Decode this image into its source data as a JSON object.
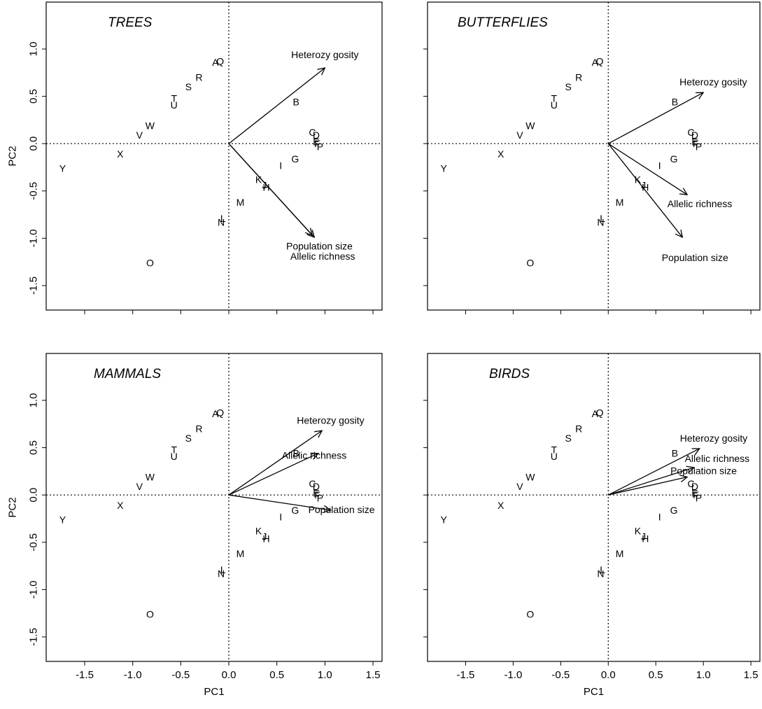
{
  "chart_data": {
    "type": "scatter",
    "subtype": "pca-biplot",
    "xlabel": "PC1",
    "ylabel": "PC2",
    "xlim": [
      -1.9,
      1.6
    ],
    "ylim": [
      -1.75,
      1.45
    ],
    "xticks": [
      -1.5,
      -1.0,
      -0.5,
      0.0,
      0.5,
      1.0,
      1.5
    ],
    "yticks": [
      1.0,
      0.5,
      0.0,
      -0.5,
      -1.0,
      -1.5
    ],
    "xtick_labels": [
      "-1.5",
      "-1.0",
      "-0.5",
      "0.0",
      "0.5",
      "1.0",
      "1.5"
    ],
    "ytick_labels": [
      "1.0",
      "0.5",
      "0.0",
      "-0.5",
      "-1.0",
      "-1.5"
    ],
    "reference_lines": {
      "x": 0,
      "y": 0,
      "style": "dotted"
    },
    "points": [
      {
        "label": "A",
        "x": -0.14,
        "y": 0.86
      },
      {
        "label": "Q",
        "x": -0.09,
        "y": 0.87
      },
      {
        "label": "B",
        "x": 0.7,
        "y": 0.44
      },
      {
        "label": "C",
        "x": 0.87,
        "y": 0.12
      },
      {
        "label": "D",
        "x": 0.91,
        "y": 0.09
      },
      {
        "label": "E",
        "x": 0.91,
        "y": 0.02
      },
      {
        "label": "F",
        "x": 0.92,
        "y": 0.0
      },
      {
        "label": "P",
        "x": 0.95,
        "y": -0.03
      },
      {
        "label": "G",
        "x": 0.69,
        "y": -0.16
      },
      {
        "label": "I",
        "x": 0.54,
        "y": -0.23
      },
      {
        "label": "K",
        "x": 0.31,
        "y": -0.38
      },
      {
        "label": "J",
        "x": 0.37,
        "y": -0.44
      },
      {
        "label": "H",
        "x": 0.39,
        "y": -0.46
      },
      {
        "label": "M",
        "x": 0.12,
        "y": -0.62
      },
      {
        "label": "L",
        "x": -0.06,
        "y": -0.79
      },
      {
        "label": "N",
        "x": -0.08,
        "y": -0.83
      },
      {
        "label": "O",
        "x": -0.82,
        "y": -1.26
      },
      {
        "label": "R",
        "x": -0.31,
        "y": 0.7
      },
      {
        "label": "S",
        "x": -0.42,
        "y": 0.6
      },
      {
        "label": "T",
        "x": -0.57,
        "y": 0.48
      },
      {
        "label": "U",
        "x": -0.57,
        "y": 0.41
      },
      {
        "label": "V",
        "x": -0.93,
        "y": 0.09
      },
      {
        "label": "W",
        "x": -0.82,
        "y": 0.19
      },
      {
        "label": "X",
        "x": -1.13,
        "y": -0.11
      },
      {
        "label": "Y",
        "x": -1.73,
        "y": -0.26
      }
    ],
    "panels": [
      {
        "title": "TREES",
        "vectors": [
          {
            "name": "Heterozy gosity",
            "x": 1.0,
            "y": 0.8
          },
          {
            "name": "Population size",
            "x": 0.87,
            "y": -0.97
          },
          {
            "name": "Allelic richness",
            "x": 0.89,
            "y": -0.99
          }
        ]
      },
      {
        "title": "BUTTERFLIES",
        "vectors": [
          {
            "name": "Heterozy gosity",
            "x": 1.0,
            "y": 0.54
          },
          {
            "name": "Allelic richness",
            "x": 0.83,
            "y": -0.54
          },
          {
            "name": "Population size",
            "x": 0.78,
            "y": -0.99
          }
        ]
      },
      {
        "title": "MAMMALS",
        "vectors": [
          {
            "name": "Heterozy gosity",
            "x": 0.97,
            "y": 0.68
          },
          {
            "name": "Allelic richness",
            "x": 0.93,
            "y": 0.44
          },
          {
            "name": "Population size",
            "x": 1.06,
            "y": -0.16
          }
        ]
      },
      {
        "title": "BIRDS",
        "vectors": [
          {
            "name": "Heterozy gosity",
            "x": 0.96,
            "y": 0.49
          },
          {
            "name": "Allelic richness",
            "x": 0.9,
            "y": 0.29
          },
          {
            "name": "Population size",
            "x": 0.83,
            "y": 0.19
          }
        ]
      }
    ]
  }
}
